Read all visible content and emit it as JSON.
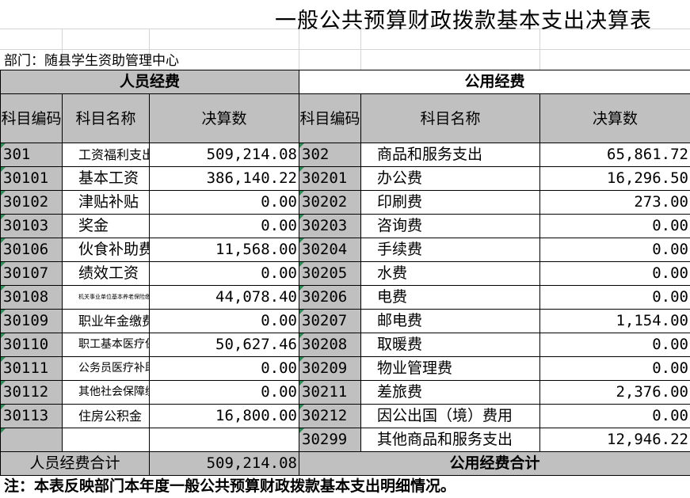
{
  "title": "一般公共预算财政拨款基本支出决算表",
  "department": "部门：随县学生资助管理中心",
  "groups": {
    "personnel": "人员经费",
    "public": "公用经费"
  },
  "headers": {
    "code": "科目编码",
    "name": "科目名称",
    "amount": "决算数"
  },
  "personnel_rows": [
    {
      "code": "301",
      "name": "工资福利支出",
      "amount": "509,214.08"
    },
    {
      "code": "30101",
      "name": "基本工资",
      "amount": "386,140.22"
    },
    {
      "code": "30102",
      "name": "津贴补贴",
      "amount": "0.00"
    },
    {
      "code": "30103",
      "name": "奖金",
      "amount": "0.00"
    },
    {
      "code": "30106",
      "name": "伙食补助费",
      "amount": "11,568.00"
    },
    {
      "code": "30107",
      "name": "绩效工资",
      "amount": "0.00"
    },
    {
      "code": "30108",
      "name": "机关事业单位基本养老保险缴费",
      "amount": "44,078.40"
    },
    {
      "code": "30109",
      "name": "职业年金缴费",
      "amount": "0.00"
    },
    {
      "code": "30110",
      "name": "职工基本医疗保险缴费",
      "amount": "50,627.46"
    },
    {
      "code": "30111",
      "name": "公务员医疗补助缴费",
      "amount": "0.00"
    },
    {
      "code": "30112",
      "name": "其他社会保障缴费",
      "amount": "0.00"
    },
    {
      "code": "30113",
      "name": "住房公积金",
      "amount": "16,800.00"
    },
    {
      "code": "",
      "name": "",
      "amount": ""
    }
  ],
  "public_rows": [
    {
      "code": "302",
      "name": "商品和服务支出",
      "amount": "65,861.72"
    },
    {
      "code": "30201",
      "name": "办公费",
      "amount": "16,296.50"
    },
    {
      "code": "30202",
      "name": "印刷费",
      "amount": "273.00"
    },
    {
      "code": "30203",
      "name": "咨询费",
      "amount": "0.00"
    },
    {
      "code": "30204",
      "name": "手续费",
      "amount": "0.00"
    },
    {
      "code": "30205",
      "name": "水费",
      "amount": "0.00"
    },
    {
      "code": "30206",
      "name": "电费",
      "amount": "0.00"
    },
    {
      "code": "30207",
      "name": "邮电费",
      "amount": "1,154.00"
    },
    {
      "code": "30208",
      "name": "取暖费",
      "amount": "0.00"
    },
    {
      "code": "30209",
      "name": "物业管理费",
      "amount": "0.00"
    },
    {
      "code": "30211",
      "name": "差旅费",
      "amount": "2,376.00"
    },
    {
      "code": "30212",
      "name": "因公出国（境）费用",
      "amount": "0.00"
    },
    {
      "code": "30299",
      "name": "其他商品和服务支出",
      "amount": "12,946.22"
    }
  ],
  "totals": {
    "personnel_label": "人员经费合计",
    "personnel_amount": "509,214.08",
    "public_label": "公用经费合计"
  },
  "note": "注：本表反映部门本年度一般公共预算财政拨款基本支出明细情况。"
}
